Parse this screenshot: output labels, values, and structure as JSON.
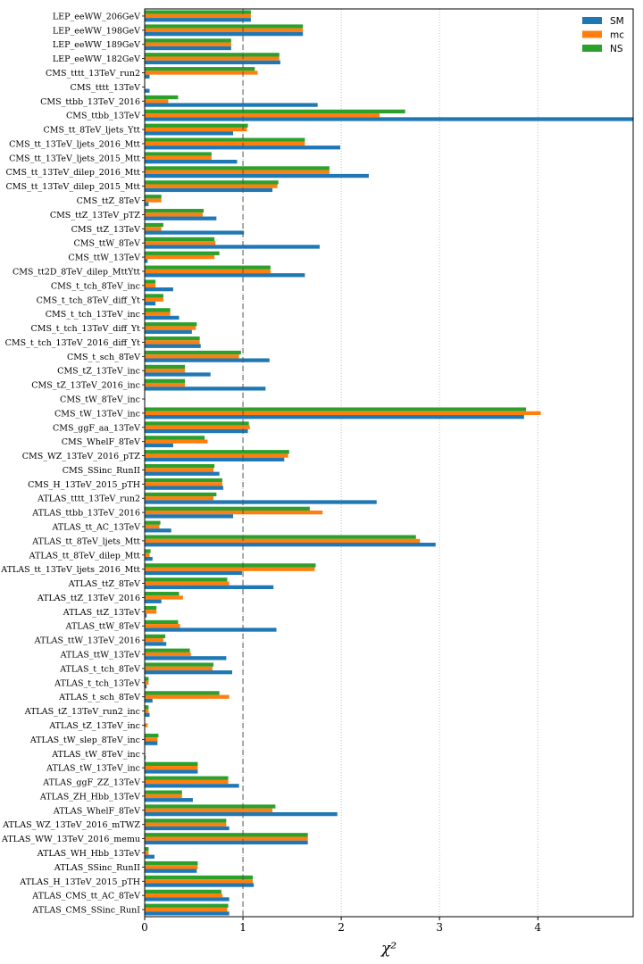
{
  "chart_data": {
    "type": "bar",
    "orientation": "horizontal",
    "xlabel": "χ²",
    "xlim": [
      0,
      4.97
    ],
    "xticks": [
      0,
      1,
      2,
      3,
      4
    ],
    "grid": "x-vertical-dotted",
    "reference_line": 1,
    "legend_position": "top-right",
    "colors": {
      "SM": "#1f77b4",
      "mc": "#ff7f0e",
      "NS": "#2ca02c"
    },
    "categories": [
      "LEP_eeWW_206GeV",
      "LEP_eeWW_198GeV",
      "LEP_eeWW_189GeV",
      "LEP_eeWW_182GeV",
      "CMS_tttt_13TeV_run2",
      "CMS_tttt_13TeV",
      "CMS_ttbb_13TeV_2016",
      "CMS_ttbb_13TeV",
      "CMS_tt_8TeV_ljets_Ytt",
      "CMS_tt_13TeV_ljets_2016_Mtt",
      "CMS_tt_13TeV_ljets_2015_Mtt",
      "CMS_tt_13TeV_dilep_2016_Mtt",
      "CMS_tt_13TeV_dilep_2015_Mtt",
      "CMS_ttZ_8TeV",
      "CMS_ttZ_13TeV_pTZ",
      "CMS_ttZ_13TeV",
      "CMS_ttW_8TeV",
      "CMS_ttW_13TeV",
      "CMS_tt2D_8TeV_dilep_MttYtt",
      "CMS_t_tch_8TeV_inc",
      "CMS_t_tch_8TeV_diff_Yt",
      "CMS_t_tch_13TeV_inc",
      "CMS_t_tch_13TeV_diff_Yt",
      "CMS_t_tch_13TeV_2016_diff_Yt",
      "CMS_t_sch_8TeV",
      "CMS_tZ_13TeV_inc",
      "CMS_tZ_13TeV_2016_inc",
      "CMS_tW_8TeV_inc",
      "CMS_tW_13TeV_inc",
      "CMS_ggF_aa_13TeV",
      "CMS_WhelF_8TeV",
      "CMS_WZ_13TeV_2016_pTZ",
      "CMS_SSinc_RunII",
      "CMS_H_13TeV_2015_pTH",
      "ATLAS_tttt_13TeV_run2",
      "ATLAS_ttbb_13TeV_2016",
      "ATLAS_tt_AC_13TeV",
      "ATLAS_tt_8TeV_ljets_Mtt",
      "ATLAS_tt_8TeV_dilep_Mtt",
      "ATLAS_tt_13TeV_ljets_2016_Mtt",
      "ATLAS_ttZ_8TeV",
      "ATLAS_ttZ_13TeV_2016",
      "ATLAS_ttZ_13TeV",
      "ATLAS_ttW_8TeV",
      "ATLAS_ttW_13TeV_2016",
      "ATLAS_ttW_13TeV",
      "ATLAS_t_tch_8TeV",
      "ATLAS_t_tch_13TeV",
      "ATLAS_t_sch_8TeV",
      "ATLAS_tZ_13TeV_run2_inc",
      "ATLAS_tZ_13TeV_inc",
      "ATLAS_tW_slep_8TeV_inc",
      "ATLAS_tW_8TeV_inc",
      "ATLAS_tW_13TeV_inc",
      "ATLAS_ggF_ZZ_13TeV",
      "ATLAS_ZH_Hbb_13TeV",
      "ATLAS_WhelF_8TeV",
      "ATLAS_WZ_13TeV_2016_mTWZ",
      "ATLAS_WW_13TeV_2016_memu",
      "ATLAS_WH_Hbb_13TeV",
      "ATLAS_SSinc_RunII",
      "ATLAS_H_13TeV_2015_pTH",
      "ATLAS_CMS_tt_AC_8TeV",
      "ATLAS_CMS_SSinc_RunI"
    ],
    "series": [
      {
        "name": "SM",
        "values": [
          1.08,
          1.61,
          0.88,
          1.38,
          0.05,
          0.05,
          1.76,
          4.97,
          0.9,
          1.99,
          0.94,
          2.28,
          1.3,
          0.04,
          0.73,
          1.01,
          1.78,
          0.03,
          1.63,
          0.29,
          0.11,
          0.35,
          0.48,
          0.57,
          1.27,
          0.67,
          1.23,
          0.0,
          3.86,
          1.05,
          0.29,
          1.42,
          0.76,
          0.8,
          2.36,
          0.9,
          0.27,
          2.96,
          0.08,
          0.99,
          1.31,
          0.17,
          0.02,
          1.34,
          0.22,
          0.83,
          0.89,
          0.02,
          0.08,
          0.05,
          0.0,
          0.13,
          0.01,
          0.54,
          0.96,
          0.49,
          1.96,
          0.86,
          1.66,
          0.1,
          0.53,
          1.11,
          0.86,
          0.86
        ]
      },
      {
        "name": "mc",
        "values": [
          1.08,
          1.61,
          0.88,
          1.37,
          1.15,
          0.0,
          0.24,
          2.39,
          1.04,
          1.63,
          0.68,
          1.88,
          1.35,
          0.17,
          0.59,
          0.17,
          0.72,
          0.71,
          1.28,
          0.11,
          0.19,
          0.26,
          0.52,
          0.56,
          0.96,
          0.41,
          0.41,
          0.0,
          4.03,
          1.07,
          0.64,
          1.46,
          0.7,
          0.79,
          0.7,
          1.81,
          0.15,
          2.8,
          0.05,
          1.73,
          0.86,
          0.39,
          0.12,
          0.36,
          0.19,
          0.47,
          0.69,
          0.04,
          0.86,
          0.04,
          0.03,
          0.13,
          0.0,
          0.54,
          0.85,
          0.38,
          1.3,
          0.83,
          1.66,
          0.04,
          0.54,
          1.1,
          0.79,
          0.84
        ]
      },
      {
        "name": "NS",
        "values": [
          1.08,
          1.61,
          0.88,
          1.37,
          1.12,
          0.0,
          0.34,
          2.65,
          1.05,
          1.63,
          0.68,
          1.88,
          1.36,
          0.17,
          0.6,
          0.19,
          0.71,
          0.76,
          1.28,
          0.11,
          0.19,
          0.26,
          0.53,
          0.56,
          0.98,
          0.41,
          0.41,
          0.0,
          3.88,
          1.06,
          0.61,
          1.47,
          0.71,
          0.79,
          0.73,
          1.68,
          0.16,
          2.76,
          0.06,
          1.74,
          0.84,
          0.35,
          0.12,
          0.34,
          0.21,
          0.46,
          0.7,
          0.04,
          0.76,
          0.04,
          0.0,
          0.14,
          0.0,
          0.54,
          0.85,
          0.38,
          1.33,
          0.83,
          1.66,
          0.04,
          0.54,
          1.1,
          0.78,
          0.85
        ]
      }
    ]
  }
}
